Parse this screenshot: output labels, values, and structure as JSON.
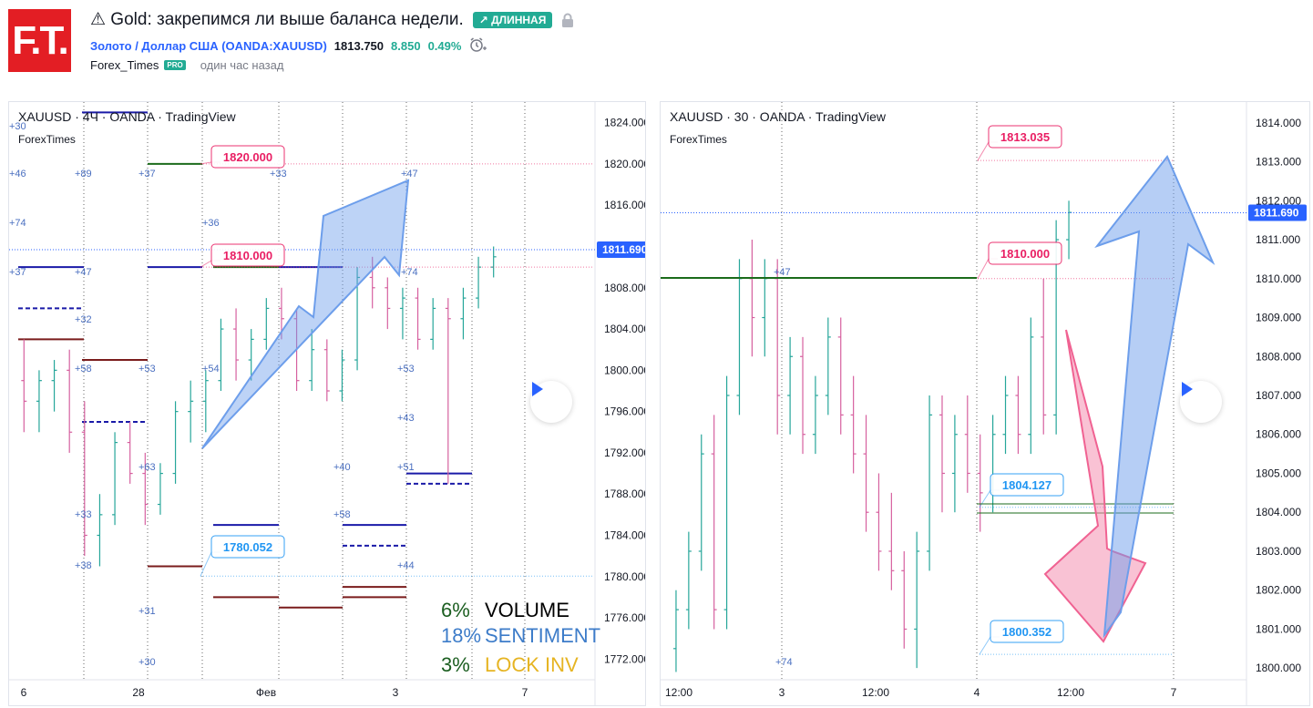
{
  "logo": {
    "text": "F.T."
  },
  "header": {
    "title": "⚠ Gold: закрепимся ли выше баланса недели.",
    "direction_badge": "↗ ДЛИННАЯ",
    "symbol_link": "Золото / Доллар США (OANDA:XAUUSD)",
    "price": "1813.750",
    "change": "8.850",
    "change_pct": "0.49%",
    "author": "Forex_Times",
    "pro_badge": "PRO",
    "published": "один час назад"
  },
  "colors": {
    "up": "#26a69a",
    "down": "#d6609f",
    "accent": "#2962ff",
    "arrow_up": "#6d9eeb",
    "arrow_down": "#f48fb1",
    "level_green": "#1b6b1b",
    "level_maroon": "#7a1c1c",
    "level_blue": "#1a1aa8"
  },
  "icons": [
    "warning-icon",
    "lock-icon",
    "alarm-clock-icon",
    "play-icon"
  ],
  "chart_data": [
    {
      "type": "ohlc",
      "legend": "XAUUSD · 4Ч · OANDA · TradingView",
      "watermark": "ForexTimes",
      "y_ticks": [
        "1824.000",
        "1820.000",
        "1816.000",
        "1812.000",
        "1808.000",
        "1804.000",
        "1800.000",
        "1796.000",
        "1792.000",
        "1788.000",
        "1784.000",
        "1780.000",
        "1776.000",
        "1772.000"
      ],
      "y_range": [
        1770.0,
        1826.0
      ],
      "x_ticks": [
        "6",
        "28",
        "Фев",
        "3",
        "7"
      ],
      "last_price": "1811.690",
      "series": [
        [
          1799,
          1803,
          1794,
          1797
        ],
        [
          1797,
          1800,
          1794,
          1799
        ],
        [
          1799,
          1801,
          1796,
          1800
        ],
        [
          1800,
          1802,
          1792,
          1794
        ],
        [
          1794,
          1797,
          1782,
          1784
        ],
        [
          1784,
          1788,
          1781,
          1786
        ],
        [
          1786,
          1794,
          1785,
          1793
        ],
        [
          1793,
          1795,
          1789,
          1790
        ],
        [
          1790,
          1792,
          1785,
          1787
        ],
        [
          1787,
          1791,
          1786,
          1790
        ],
        [
          1790,
          1797,
          1789,
          1796
        ],
        [
          1796,
          1799,
          1793,
          1797
        ],
        [
          1797,
          1800,
          1794,
          1799
        ],
        [
          1799,
          1805,
          1798,
          1804
        ],
        [
          1804,
          1806,
          1799,
          1801
        ],
        [
          1801,
          1804,
          1799,
          1803
        ],
        [
          1803,
          1807,
          1802,
          1806
        ],
        [
          1806,
          1808,
          1803,
          1805
        ],
        [
          1805,
          1806,
          1798,
          1799
        ],
        [
          1799,
          1804,
          1798,
          1802
        ],
        [
          1802,
          1803,
          1797,
          1798
        ],
        [
          1798,
          1802,
          1797,
          1801
        ],
        [
          1801,
          1810,
          1800,
          1809
        ],
        [
          1809,
          1811,
          1806,
          1808
        ],
        [
          1808,
          1809,
          1804,
          1806
        ],
        [
          1806,
          1808,
          1803,
          1807
        ],
        [
          1807,
          1808,
          1802,
          1803
        ],
        [
          1803,
          1807,
          1802,
          1806
        ],
        [
          1806,
          1807,
          1789,
          1805
        ],
        [
          1805,
          1808,
          1803,
          1807
        ],
        [
          1807,
          1811,
          1806,
          1810
        ],
        [
          1810,
          1812,
          1809,
          1811
        ]
      ],
      "price_labels": [
        {
          "text": "1820.000",
          "value": 1820.0,
          "color": "#e91e63"
        },
        {
          "text": "1810.000",
          "value": 1810.0,
          "color": "#e91e63"
        },
        {
          "text": "1780.052",
          "value": 1780.052,
          "color": "#2196f3"
        }
      ],
      "levels": [
        {
          "value": 1825.0,
          "color": "#1a1aa8",
          "style": "solid",
          "segment": 1
        },
        {
          "value": 1820.0,
          "color": "#1b6b1b",
          "style": "solid",
          "segment": 2
        },
        {
          "value": 1810.0,
          "color": "#1a1aa8",
          "style": "solid",
          "segment": 0
        },
        {
          "value": 1810.0,
          "color": "#1a1aa8",
          "style": "solid",
          "segment": 2
        },
        {
          "value": 1810.0,
          "color": "#1b6b1b",
          "style": "solid",
          "segment": 3
        },
        {
          "value": 1810.0,
          "color": "#1a1aa8",
          "style": "solid",
          "segment": 4
        },
        {
          "value": 1806.0,
          "color": "#1a1aa8",
          "style": "dashed",
          "segment": 0
        },
        {
          "value": 1803.0,
          "color": "#7a1c1c",
          "style": "solid",
          "segment": 0
        },
        {
          "value": 1801.0,
          "color": "#7a1c1c",
          "style": "solid",
          "segment": 1
        },
        {
          "value": 1795.0,
          "color": "#1a1aa8",
          "style": "dashed",
          "segment": 1
        },
        {
          "value": 1790.0,
          "color": "#1a1aa8",
          "style": "solid",
          "segment": 8
        },
        {
          "value": 1789.0,
          "color": "#1a1aa8",
          "style": "dashed",
          "segment": 8
        },
        {
          "value": 1785.0,
          "color": "#1a1aa8",
          "style": "solid",
          "segment": 3
        },
        {
          "value": 1785.0,
          "color": "#1a1aa8",
          "style": "solid",
          "segment": 5
        },
        {
          "value": 1783.0,
          "color": "#1a1aa8",
          "style": "dashed",
          "segment": 5
        },
        {
          "value": 1781.0,
          "color": "#7a1c1c",
          "style": "solid",
          "segment": 2
        },
        {
          "value": 1778.0,
          "color": "#7a1c1c",
          "style": "solid",
          "segment": 3
        },
        {
          "value": 1777.0,
          "color": "#7a1c1c",
          "style": "solid",
          "segment": 4
        },
        {
          "value": 1778.0,
          "color": "#7a1c1c",
          "style": "solid",
          "segment": 5
        },
        {
          "value": 1779.0,
          "color": "#7a1c1c",
          "style": "solid",
          "segment": 6
        }
      ],
      "annotations": [
        "+30",
        "+46",
        "+74",
        "+37",
        "+89",
        "+47",
        "+32",
        "+58",
        "+33",
        "+38",
        "+37",
        "+53",
        "+63",
        "+31",
        "+30",
        "+36",
        "+54",
        "+33",
        "+40",
        "+58",
        "+47",
        "+74",
        "+53",
        "+43",
        "+51",
        "+44"
      ],
      "arrow": {
        "direction": "up",
        "from": [
          1792.0,
          0.33
        ],
        "to": [
          1820.5,
          0.69
        ]
      },
      "stats": [
        {
          "pct": "6%",
          "label": "VOLUME",
          "pct_color": "#1b5e20",
          "label_color": "#000000"
        },
        {
          "pct": "18%",
          "label": "SENTIMENT",
          "pct_color": "#3d7cc9",
          "label_color": "#3d7cc9"
        },
        {
          "pct": "3%",
          "label": "LOCK INV",
          "pct_color": "#1b5e20",
          "label_color": "#e6b422"
        }
      ]
    },
    {
      "type": "ohlc",
      "legend": "XAUUSD · 30 · OANDA · TradingView",
      "watermark": "ForexTimes",
      "y_ticks": [
        "1814.000",
        "1813.000",
        "1812.000",
        "1811.000",
        "1810.000",
        "1809.000",
        "1808.000",
        "1807.000",
        "1806.000",
        "1805.000",
        "1804.000",
        "1803.000",
        "1802.000",
        "1801.000",
        "1800.000"
      ],
      "y_range": [
        1799.7,
        1814.3
      ],
      "x_ticks": [
        "12:00",
        "3",
        "12:00",
        "4",
        "12:00",
        "7"
      ],
      "last_price": "1811.690",
      "series": [
        [
          1800.5,
          1802.0,
          1799.9,
          1801.5
        ],
        [
          1801.5,
          1803.5,
          1801.0,
          1803.0
        ],
        [
          1803.0,
          1806.0,
          1802.5,
          1805.5
        ],
        [
          1805.5,
          1806.5,
          1801.0,
          1801.5
        ],
        [
          1801.5,
          1807.5,
          1801.0,
          1807.0
        ],
        [
          1807.0,
          1810.5,
          1806.5,
          1810.0
        ],
        [
          1810.0,
          1811.0,
          1808.0,
          1809.0
        ],
        [
          1809.0,
          1810.5,
          1808.0,
          1810.0
        ],
        [
          1810.0,
          1810.5,
          1806.0,
          1807.0
        ],
        [
          1807.0,
          1808.5,
          1806.0,
          1808.0
        ],
        [
          1808.0,
          1808.5,
          1805.5,
          1806.0
        ],
        [
          1806.0,
          1807.5,
          1805.5,
          1807.0
        ],
        [
          1807.0,
          1809.0,
          1806.5,
          1808.5
        ],
        [
          1808.5,
          1809.0,
          1806.0,
          1806.5
        ],
        [
          1806.5,
          1807.5,
          1805.0,
          1805.5
        ],
        [
          1805.5,
          1806.5,
          1803.5,
          1804.0
        ],
        [
          1804.0,
          1805.0,
          1802.5,
          1803.0
        ],
        [
          1803.0,
          1804.5,
          1802.0,
          1802.5
        ],
        [
          1802.5,
          1803.0,
          1800.5,
          1801.0
        ],
        [
          1801.0,
          1803.5,
          1800.0,
          1803.0
        ],
        [
          1803.0,
          1807.0,
          1802.5,
          1806.5
        ],
        [
          1806.5,
          1807.0,
          1804.0,
          1805.0
        ],
        [
          1805.0,
          1806.5,
          1804.0,
          1806.0
        ],
        [
          1806.0,
          1807.0,
          1804.5,
          1805.0
        ],
        [
          1805.0,
          1806.0,
          1803.5,
          1804.5
        ],
        [
          1804.5,
          1806.5,
          1804.0,
          1806.0
        ],
        [
          1806.0,
          1807.5,
          1805.5,
          1807.0
        ],
        [
          1807.0,
          1807.5,
          1805.5,
          1806.0
        ],
        [
          1806.0,
          1809.0,
          1805.5,
          1808.5
        ],
        [
          1808.5,
          1810.0,
          1806.0,
          1806.5
        ],
        [
          1806.5,
          1811.5,
          1806.0,
          1811.0
        ],
        [
          1811.0,
          1812.0,
          1810.5,
          1811.7
        ]
      ],
      "price_labels": [
        {
          "text": "1813.035",
          "value": 1813.035,
          "color": "#e91e63"
        },
        {
          "text": "1810.000",
          "value": 1810.0,
          "color": "#e91e63"
        },
        {
          "text": "1804.127",
          "value": 1804.127,
          "color": "#2196f3"
        },
        {
          "text": "1800.352",
          "value": 1800.352,
          "color": "#2196f3"
        }
      ],
      "annotations": [
        "+47",
        "+74"
      ],
      "arrows": [
        {
          "direction": "down"
        },
        {
          "direction": "up"
        }
      ]
    }
  ]
}
